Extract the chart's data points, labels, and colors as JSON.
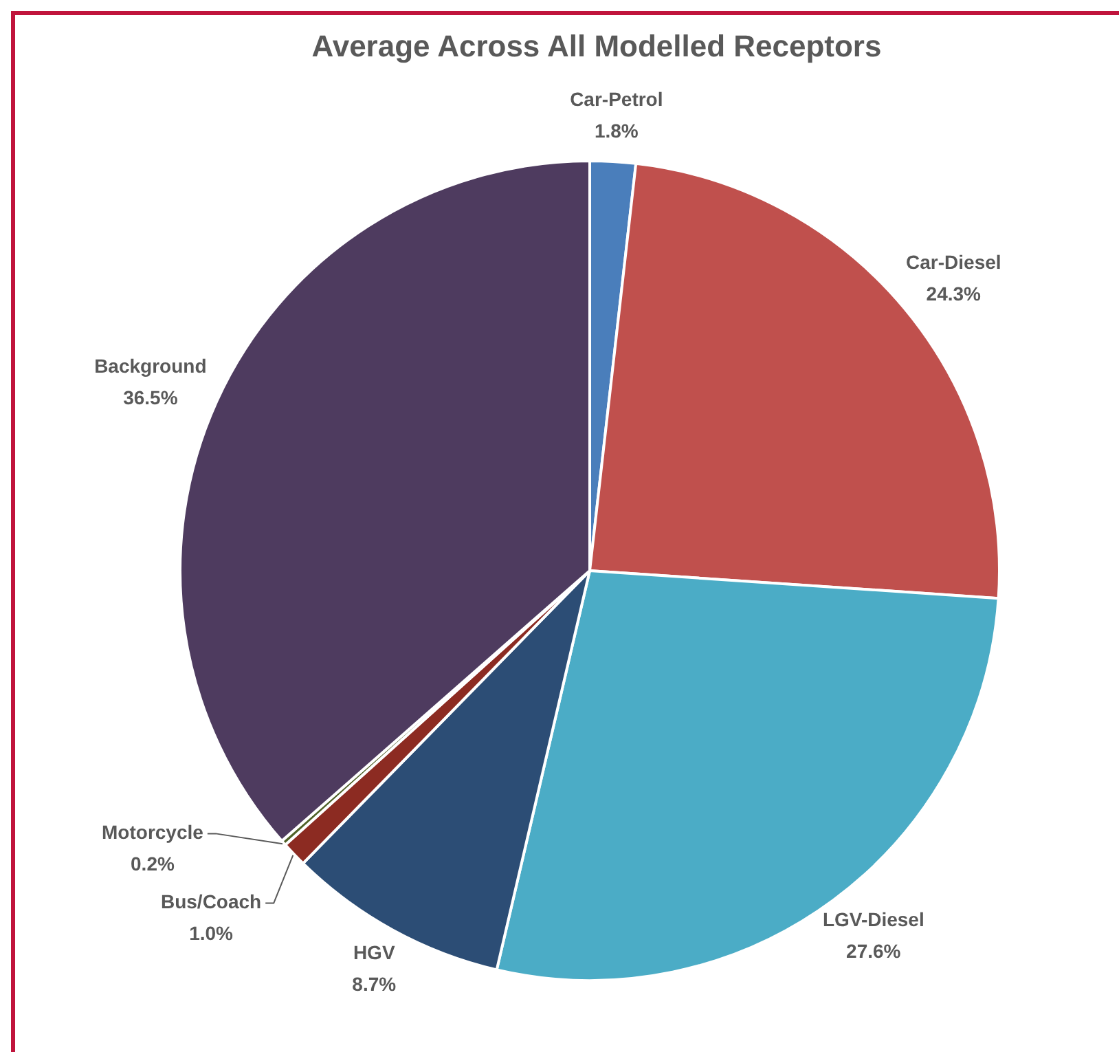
{
  "chart_data": {
    "type": "pie",
    "title": "Average Across All Modelled Receptors",
    "categories": [
      "Car-Petrol",
      "Car-Diesel",
      "LGV-Diesel",
      "HGV",
      "Bus/Coach",
      "Motorcycle",
      "Background"
    ],
    "values": [
      1.8,
      24.3,
      27.6,
      8.7,
      1.0,
      0.2,
      36.5
    ],
    "colors": [
      "#4a7ebb",
      "#c0504d",
      "#4bacc6",
      "#2c4d75",
      "#8c2b22",
      "#4f6228",
      "#4e3b5f"
    ],
    "value_labels": [
      "1.8%",
      "24.3%",
      "27.6%",
      "8.7%",
      "1.0%",
      "0.2%",
      "36.5%"
    ]
  }
}
